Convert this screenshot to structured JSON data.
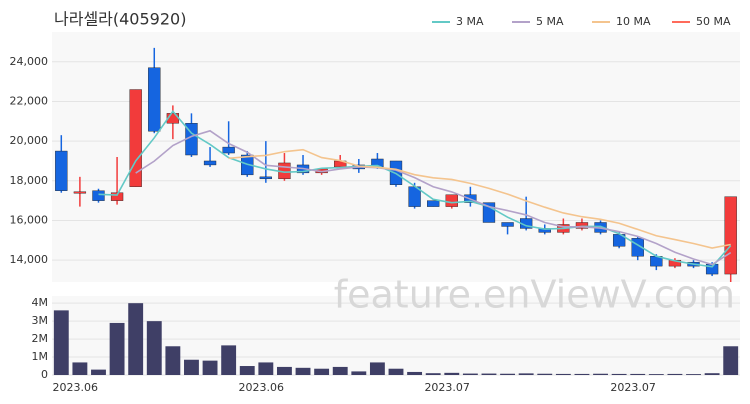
{
  "chart_data": {
    "type": "candlestick",
    "title": "나라셀라(405920)",
    "watermark": "feature.enViewV.com",
    "categories": [
      "2023.06",
      null,
      null,
      null,
      null,
      null,
      null,
      null,
      null,
      null,
      "2023.06",
      null,
      null,
      null,
      null,
      null,
      null,
      null,
      null,
      null,
      "2023.07",
      null,
      null,
      null,
      null,
      null,
      null,
      null,
      null,
      null,
      "2023.07",
      null,
      null,
      null,
      null,
      null,
      null
    ],
    "open": [
      19500,
      17400,
      17500,
      17000,
      17700,
      23700,
      20900,
      20900,
      19000,
      19700,
      19300,
      18200,
      18100,
      18800,
      18400,
      18700,
      18800,
      19100,
      19000,
      17700,
      17000,
      16700,
      17300,
      16900,
      15900,
      16100,
      15600,
      15400,
      15600,
      15900,
      15300,
      15100,
      14200,
      13700,
      13900,
      13800,
      13300
    ],
    "high": [
      20300,
      18200,
      17600,
      19200,
      22600,
      24700,
      21800,
      21400,
      19700,
      21000,
      19500,
      20000,
      19400,
      19300,
      18600,
      19300,
      19100,
      19400,
      19000,
      17900,
      17000,
      17300,
      17700,
      16900,
      15900,
      17200,
      15800,
      16100,
      16100,
      16000,
      15400,
      15200,
      14300,
      14100,
      14000,
      13900,
      17200
    ],
    "low": [
      17400,
      16700,
      16900,
      16800,
      17700,
      20400,
      20100,
      19200,
      18700,
      19300,
      18200,
      17900,
      18000,
      18300,
      18300,
      18600,
      18400,
      18600,
      17700,
      16600,
      16700,
      16600,
      16700,
      15900,
      15300,
      15500,
      15300,
      15300,
      15500,
      15300,
      14600,
      14000,
      13500,
      13600,
      13600,
      13200,
      12900
    ],
    "close": [
      17500,
      17450,
      17000,
      17400,
      22600,
      20500,
      21400,
      19300,
      18800,
      19400,
      18300,
      18100,
      18900,
      18400,
      18600,
      19000,
      18600,
      18700,
      17800,
      16700,
      16700,
      17300,
      16900,
      15900,
      15700,
      15600,
      15400,
      15800,
      15900,
      15400,
      14700,
      14200,
      13700,
      14000,
      13700,
      13300,
      17200
    ],
    "up_color": "#f23b3b",
    "down_color": "#1565e0",
    "series": [
      {
        "name": "3 MA",
        "color": "#63c9c6",
        "values": [
          null,
          null,
          17317,
          17283,
          19000,
          20167,
          21500,
          20400,
          19833,
          19167,
          18833,
          18600,
          18433,
          18467,
          18633,
          18667,
          18733,
          18767,
          18367,
          17733,
          17067,
          16900,
          16967,
          16700,
          16167,
          15733,
          15567,
          15600,
          15700,
          15700,
          15333,
          14767,
          14200,
          13967,
          13800,
          13667,
          14733
        ]
      },
      {
        "name": "5 MA",
        "color": "#b3a2c9",
        "values": [
          null,
          null,
          null,
          null,
          18390,
          18990,
          19780,
          20240,
          20520,
          19880,
          19440,
          18780,
          18700,
          18620,
          18460,
          18600,
          18700,
          18660,
          18540,
          18160,
          17700,
          17440,
          17080,
          16700,
          16500,
          16280,
          15900,
          15680,
          15680,
          15620,
          15440,
          15200,
          14840,
          14400,
          14060,
          13780,
          14380
        ]
      },
      {
        "name": "10 MA",
        "color": "#f4c48e",
        "values": [
          null,
          null,
          null,
          null,
          null,
          null,
          null,
          null,
          null,
          19135,
          19215,
          19280,
          19470,
          19570,
          19170,
          19020,
          18740,
          18680,
          18580,
          18310,
          18150,
          18070,
          17870,
          17620,
          17330,
          16990,
          16670,
          16380,
          16190,
          16060,
          15860,
          15550,
          15230,
          15040,
          14840,
          14610,
          14790
        ]
      },
      {
        "name": "50 MA",
        "color": "#ff6b5b",
        "values": [
          null,
          null,
          null,
          null,
          null,
          null,
          null,
          null,
          null,
          null,
          null,
          null,
          null,
          null,
          null,
          null,
          null,
          null,
          null,
          null,
          null,
          null,
          null,
          null,
          null,
          null,
          null,
          null,
          null,
          null,
          null,
          null,
          null,
          null,
          null,
          null,
          null
        ]
      }
    ],
    "ylim": [
      12900,
      25500
    ],
    "yticks": [
      {
        "value": 14000,
        "label": "14,000"
      },
      {
        "value": 16000,
        "label": "16,000"
      },
      {
        "value": 18000,
        "label": "18,000"
      },
      {
        "value": 20000,
        "label": "20,000"
      },
      {
        "value": 22000,
        "label": "22,000"
      },
      {
        "value": 24000,
        "label": "24,000"
      }
    ],
    "volume": {
      "color": "#3f3f66",
      "values": [
        3600000,
        700000,
        300000,
        2900000,
        4000000,
        3000000,
        1600000,
        850000,
        800000,
        1650000,
        500000,
        700000,
        450000,
        400000,
        350000,
        450000,
        200000,
        700000,
        350000,
        170000,
        100000,
        120000,
        80000,
        80000,
        70000,
        90000,
        70000,
        60000,
        60000,
        70000,
        60000,
        60000,
        50000,
        60000,
        50000,
        100000,
        1600000
      ],
      "ylim": [
        0,
        4400000
      ],
      "yticks": [
        0,
        {
          "value": 1000000,
          "label": "1M"
        },
        {
          "value": 2000000,
          "label": "2M"
        },
        {
          "value": 3000000,
          "label": "3M"
        },
        {
          "value": 4000000,
          "label": "4M"
        }
      ]
    },
    "grid": true
  }
}
